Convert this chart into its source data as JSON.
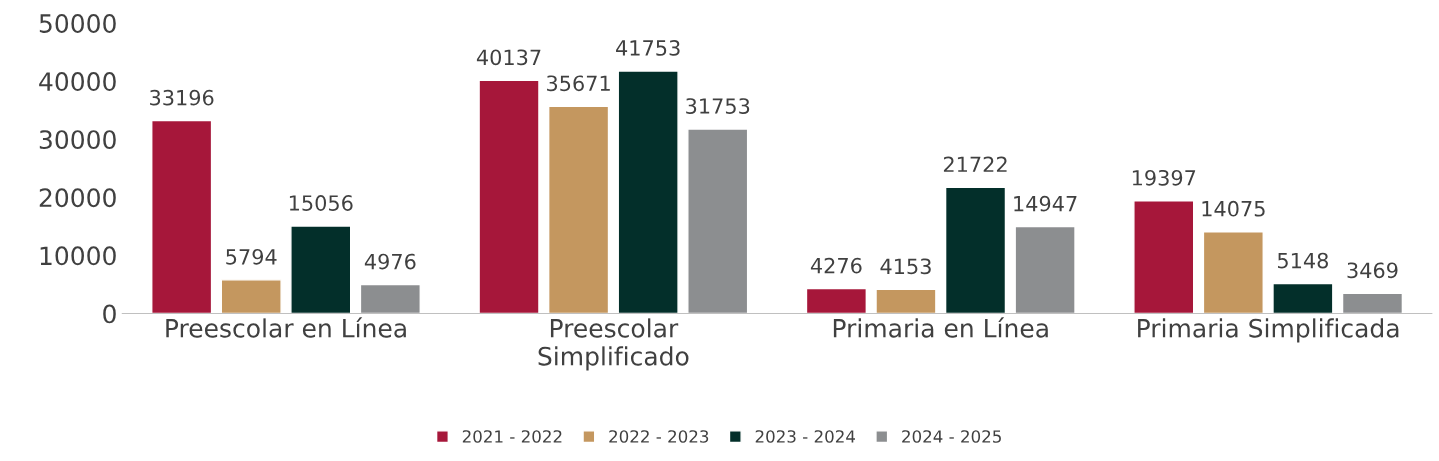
{
  "chart_data": {
    "type": "bar",
    "categories": [
      "Preescolar en Línea",
      "Preescolar\nSimplificado",
      "Primaria en Línea",
      "Primaria Simplificada"
    ],
    "series": [
      {
        "name": "2021 - 2022",
        "color": "#a6173a",
        "values": [
          33196,
          40137,
          4276,
          19397
        ]
      },
      {
        "name": "2022 - 2023",
        "color": "#c4975f",
        "values": [
          5794,
          35671,
          4153,
          14075
        ]
      },
      {
        "name": "2023 - 2024",
        "color": "#032f2a",
        "values": [
          15056,
          41753,
          21722,
          5148
        ]
      },
      {
        "name": "2024 - 2025",
        "color": "#8c8e90",
        "values": [
          4976,
          31753,
          14947,
          3469
        ]
      }
    ],
    "ylim": [
      0,
      50000
    ],
    "yticks": [
      0,
      10000,
      20000,
      30000,
      40000,
      50000
    ],
    "data_labels": true,
    "grid": false,
    "legend": "bottom"
  }
}
